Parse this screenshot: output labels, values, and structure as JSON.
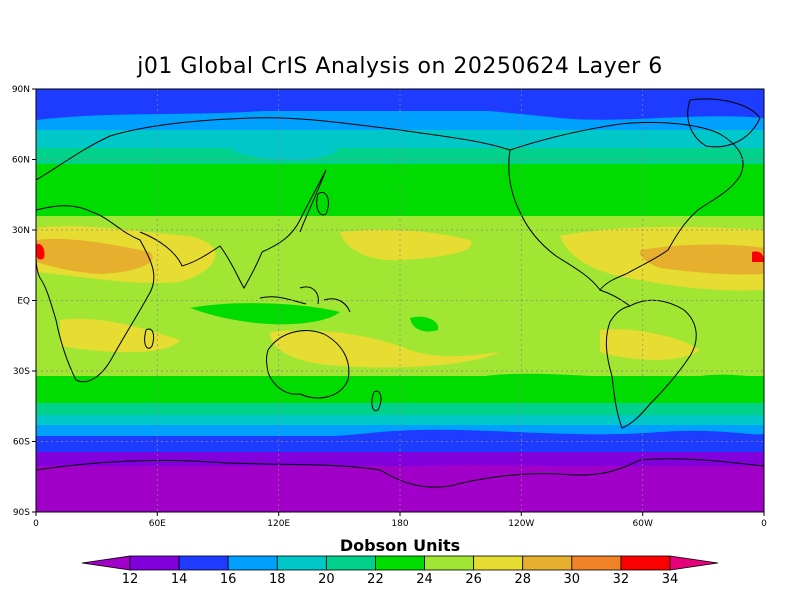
{
  "title": "j01 Global CrIS Analysis on 20250624 Layer 6",
  "lat_ticks": [
    "90N",
    "60N",
    "30N",
    "EQ",
    "30S",
    "60S",
    "90S"
  ],
  "lon_ticks": [
    "0",
    "60E",
    "120E",
    "180",
    "120W",
    "60W",
    "0"
  ],
  "colorbar": {
    "label": "Dobson Units",
    "ticks": [
      "12",
      "14",
      "16",
      "18",
      "20",
      "22",
      "24",
      "26",
      "28",
      "30",
      "32",
      "34"
    ],
    "colors": [
      "#a000c8",
      "#8200dc",
      "#1e3cff",
      "#00a0ff",
      "#00c8c8",
      "#00d28c",
      "#00dc00",
      "#a0e632",
      "#e6dc32",
      "#e6af2d",
      "#f08228",
      "#fa0000",
      "#e6007a"
    ]
  }
}
